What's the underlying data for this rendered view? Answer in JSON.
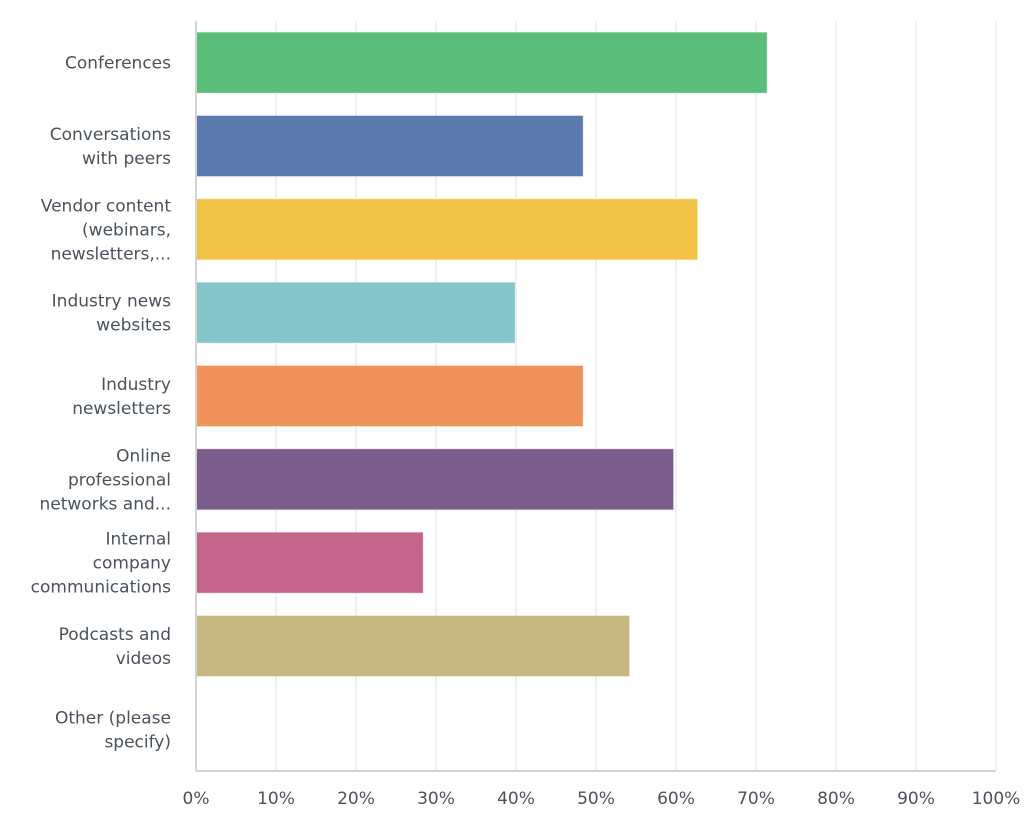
{
  "chart_data": {
    "type": "bar",
    "orientation": "horizontal",
    "title": "",
    "xlabel": "",
    "ylabel": "",
    "xlim": [
      0,
      100
    ],
    "grid": true,
    "categories": [
      [
        "Conferences"
      ],
      [
        "Conversations",
        "with peers"
      ],
      [
        "Vendor content",
        "(webinars,",
        "newsletters,..."
      ],
      [
        "Industry news",
        "websites"
      ],
      [
        "Industry",
        "newsletters"
      ],
      [
        "Online",
        "professional",
        "networks and..."
      ],
      [
        "Internal",
        "company",
        "communications"
      ],
      [
        "Podcasts and",
        "videos"
      ],
      [
        "Other (please",
        "specify)"
      ]
    ],
    "values": [
      71.4,
      48.4,
      62.7,
      39.9,
      48.4,
      59.7,
      28.4,
      54.2,
      0
    ],
    "colors": [
      "#5bbd7a",
      "#5a7ab0",
      "#efc144",
      "#84c5ca",
      "#ef925c",
      "#7a5d8c",
      "#c5658c",
      "#c5b883",
      "#cccccc"
    ],
    "x_ticks": [
      "0%",
      "10%",
      "20%",
      "30%",
      "40%",
      "50%",
      "60%",
      "70%",
      "80%",
      "90%",
      "100%"
    ],
    "x_tick_values": [
      0,
      10,
      20,
      30,
      40,
      50,
      60,
      70,
      80,
      90,
      100
    ]
  }
}
